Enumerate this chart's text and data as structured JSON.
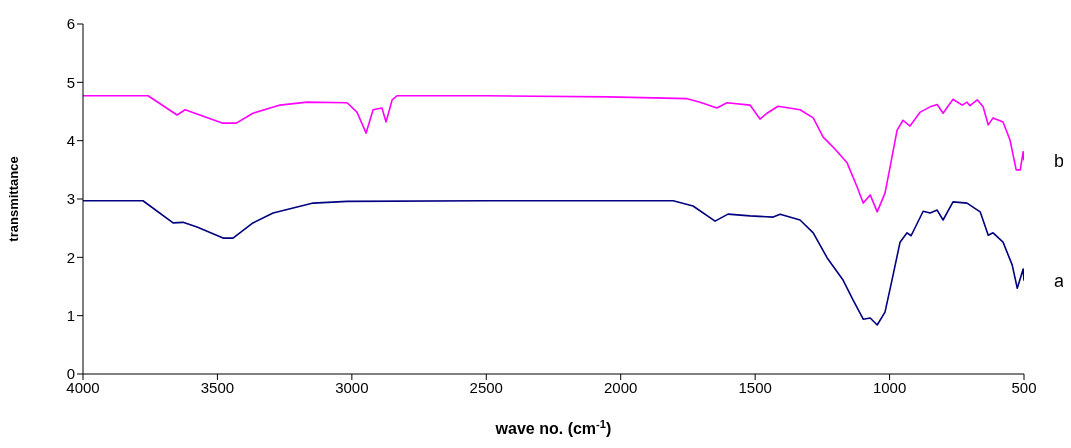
{
  "chart_data": {
    "type": "line",
    "xlabel": "wave no. (cm$^{-1}$)",
    "ylabel": "transmittance",
    "xlim": [
      4000,
      500
    ],
    "xticks": [
      4000,
      3500,
      3000,
      2500,
      2000,
      1500,
      1000,
      500
    ],
    "ylim": [
      0,
      6
    ],
    "yticks": [
      0,
      1,
      2,
      3,
      4,
      5,
      6
    ],
    "series": [
      {
        "name": "a",
        "color": "#000080",
        "x": [
          4000,
          3777,
          3665,
          3628,
          3576,
          3479,
          3442,
          3368,
          3293,
          3144,
          3018,
          2500,
          2000,
          1805,
          1731,
          1649,
          1601,
          1519,
          1433,
          1407,
          1333,
          1284,
          1232,
          1173,
          1136,
          1098,
          1072,
          1046,
          1017,
          991,
          961,
          935,
          920,
          875,
          849,
          823,
          801,
          764,
          712,
          663,
          633,
          615,
          578,
          544,
          525,
          503,
          500
        ],
        "values": [
          2.97,
          2.97,
          2.59,
          2.6,
          2.52,
          2.33,
          2.33,
          2.59,
          2.76,
          2.93,
          2.96,
          2.97,
          2.97,
          2.97,
          2.88,
          2.62,
          2.74,
          2.71,
          2.69,
          2.74,
          2.64,
          2.42,
          1.99,
          1.61,
          1.27,
          0.94,
          0.96,
          0.84,
          1.06,
          1.61,
          2.26,
          2.42,
          2.37,
          2.79,
          2.76,
          2.81,
          2.64,
          2.95,
          2.93,
          2.78,
          2.38,
          2.42,
          2.26,
          1.87,
          1.47,
          1.8,
          1.6
        ]
      },
      {
        "name": "b",
        "color": "#ff00ff",
        "x": [
          4000,
          3758,
          3650,
          3620,
          3480,
          3430,
          3368,
          3267,
          3167,
          3018,
          2981,
          2947,
          2921,
          2888,
          2873,
          2850,
          2832,
          2500,
          2047,
          1753,
          1705,
          1642,
          1605,
          1519,
          1482,
          1456,
          1415,
          1333,
          1284,
          1247,
          1210,
          1158,
          1121,
          1098,
          1072,
          1046,
          1017,
          998,
          972,
          950,
          924,
          886,
          849,
          823,
          801,
          764,
          730,
          712,
          701,
          674,
          652,
          633,
          615,
          578,
          552,
          529,
          514,
          503,
          500
        ],
        "values": [
          4.77,
          4.77,
          4.44,
          4.53,
          4.3,
          4.3,
          4.47,
          4.61,
          4.66,
          4.65,
          4.49,
          4.13,
          4.53,
          4.56,
          4.32,
          4.7,
          4.77,
          4.77,
          4.75,
          4.72,
          4.66,
          4.56,
          4.65,
          4.61,
          4.37,
          4.47,
          4.59,
          4.53,
          4.39,
          4.06,
          3.89,
          3.62,
          3.21,
          2.93,
          3.07,
          2.78,
          3.1,
          3.55,
          4.18,
          4.35,
          4.25,
          4.49,
          4.58,
          4.62,
          4.47,
          4.71,
          4.61,
          4.66,
          4.6,
          4.7,
          4.58,
          4.27,
          4.39,
          4.32,
          4.01,
          3.5,
          3.5,
          3.81,
          3.66
        ]
      }
    ]
  }
}
